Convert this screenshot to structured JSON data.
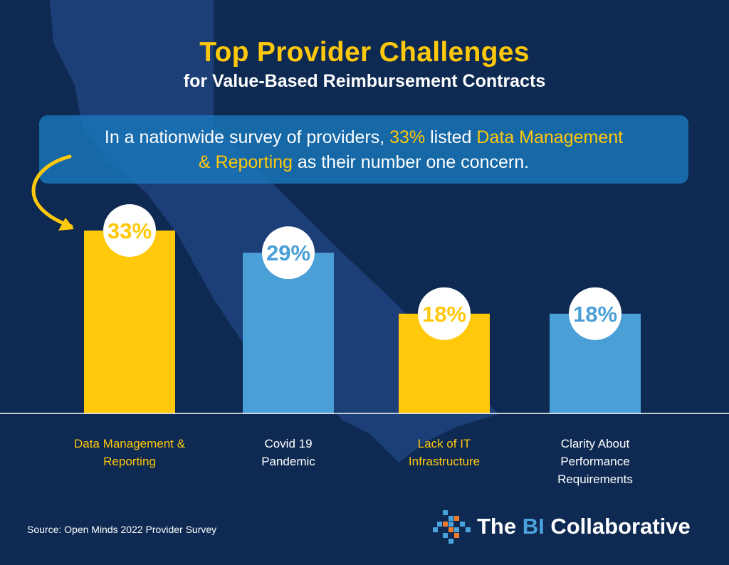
{
  "header": {
    "title": "Top Provider Challenges",
    "subtitle": "for Value-Based Reimbursement Contracts"
  },
  "callout": {
    "part1": "In a nationwide survey of providers, ",
    "highlight1": "33%",
    "part2": " listed ",
    "highlight2": "Data Management & Reporting",
    "part3": " as their number one concern."
  },
  "colors": {
    "background": "#0e2a52",
    "yellow": "#ffc80a",
    "blue": "#4a9fd6",
    "map": "#1d3f78"
  },
  "chart_data": {
    "type": "bar",
    "categories": [
      "Data Management & Reporting",
      "Covid 19 Pandemic",
      "Lack of IT Infrastructure",
      "Clarity About Performance Requirements"
    ],
    "category_lines": [
      [
        "Data Management &",
        "Reporting"
      ],
      [
        "Covid 19",
        "Pandemic"
      ],
      [
        "Lack of IT",
        "Infrastructure"
      ],
      [
        "Clarity About",
        "Performance",
        "Requirements"
      ]
    ],
    "values": [
      33,
      29,
      18,
      18
    ],
    "value_labels": [
      "33%",
      "29%",
      "18%",
      "18%"
    ],
    "bar_colors": [
      "#ffc80a",
      "#4a9fd6",
      "#ffc80a",
      "#4a9fd6"
    ],
    "label_colors": [
      "#ffc80a",
      "#ffffff",
      "#ffc80a",
      "#ffffff"
    ],
    "ylim": [
      0,
      33
    ],
    "grid": false
  },
  "footer": {
    "source": "Source:  Open Minds 2022 Provider Survey",
    "logo_the": "The ",
    "logo_bi": "BI",
    "logo_rest": " Collaborative"
  }
}
